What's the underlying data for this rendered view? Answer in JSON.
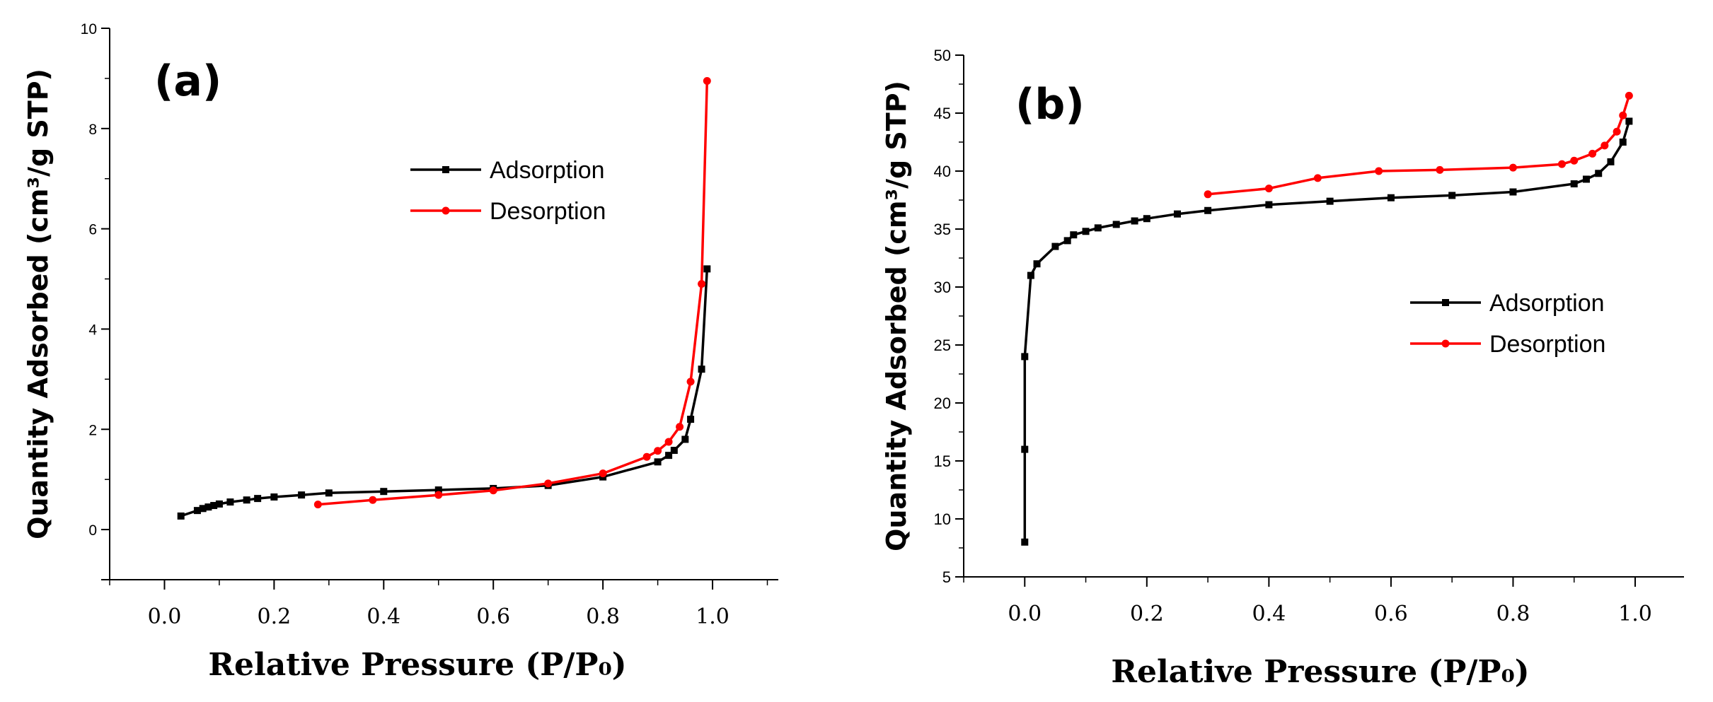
{
  "chart_data": [
    {
      "type": "line",
      "panel_label": "(a)",
      "xlabel": "Relative Pressure (P/P₀)",
      "ylabel": "Quantity Adsorbed (cm³/g STP)",
      "xlim": [
        -0.1,
        1.12
      ],
      "ylim": [
        -1,
        10
      ],
      "xticks": [
        "0.0",
        "0.2",
        "0.4",
        "0.6",
        "0.8",
        "1.0"
      ],
      "yticks": [
        "0",
        "2",
        "4",
        "6",
        "8",
        "10"
      ],
      "legend_position": "upper-middle",
      "series": [
        {
          "name": "Adsorption",
          "color": "#000000",
          "marker": "square",
          "x": [
            0.03,
            0.06,
            0.07,
            0.08,
            0.09,
            0.1,
            0.12,
            0.15,
            0.17,
            0.2,
            0.25,
            0.3,
            0.4,
            0.5,
            0.6,
            0.7,
            0.8,
            0.9,
            0.92,
            0.93,
            0.95,
            0.96,
            0.98,
            0.99
          ],
          "y": [
            0.27,
            0.38,
            0.42,
            0.45,
            0.48,
            0.51,
            0.55,
            0.59,
            0.62,
            0.65,
            0.69,
            0.73,
            0.76,
            0.79,
            0.82,
            0.88,
            1.05,
            1.35,
            1.48,
            1.58,
            1.8,
            2.2,
            3.2,
            5.2
          ]
        },
        {
          "name": "Desorption",
          "color": "#ff0000",
          "marker": "circle",
          "x": [
            0.28,
            0.38,
            0.5,
            0.6,
            0.7,
            0.8,
            0.88,
            0.9,
            0.92,
            0.94,
            0.96,
            0.98,
            0.99
          ],
          "y": [
            0.5,
            0.59,
            0.69,
            0.78,
            0.92,
            1.12,
            1.45,
            1.57,
            1.75,
            2.05,
            2.95,
            4.9,
            8.95
          ]
        }
      ]
    },
    {
      "type": "line",
      "panel_label": "(b)",
      "xlabel": "Relative Pressure (P/P₀)",
      "ylabel": "Quantity Adsorbed (cm³/g STP)",
      "xlim": [
        -0.1,
        1.08
      ],
      "ylim": [
        5,
        50
      ],
      "xticks": [
        "0.0",
        "0.2",
        "0.4",
        "0.6",
        "0.8",
        "1.0"
      ],
      "yticks": [
        "5",
        "10",
        "15",
        "20",
        "25",
        "30",
        "35",
        "40",
        "45",
        "50"
      ],
      "legend_position": "right-middle",
      "series": [
        {
          "name": "Adsorption",
          "color": "#000000",
          "marker": "square",
          "x": [
            0.0,
            0.0,
            0.0,
            0.01,
            0.02,
            0.05,
            0.07,
            0.08,
            0.1,
            0.12,
            0.15,
            0.18,
            0.2,
            0.25,
            0.3,
            0.4,
            0.5,
            0.6,
            0.7,
            0.8,
            0.9,
            0.92,
            0.94,
            0.96,
            0.98,
            0.99
          ],
          "y": [
            8.0,
            16.0,
            24.0,
            31.0,
            32.0,
            33.5,
            34.0,
            34.5,
            34.8,
            35.1,
            35.4,
            35.7,
            35.9,
            36.3,
            36.6,
            37.1,
            37.4,
            37.7,
            37.9,
            38.2,
            38.9,
            39.3,
            39.8,
            40.8,
            42.5,
            44.3
          ]
        },
        {
          "name": "Desorption",
          "color": "#ff0000",
          "marker": "circle",
          "x": [
            0.3,
            0.4,
            0.48,
            0.58,
            0.68,
            0.8,
            0.88,
            0.9,
            0.93,
            0.95,
            0.97,
            0.98,
            0.99
          ],
          "y": [
            38.0,
            38.5,
            39.4,
            40.0,
            40.1,
            40.3,
            40.6,
            40.9,
            41.5,
            42.2,
            43.4,
            44.8,
            46.5
          ]
        }
      ]
    }
  ]
}
